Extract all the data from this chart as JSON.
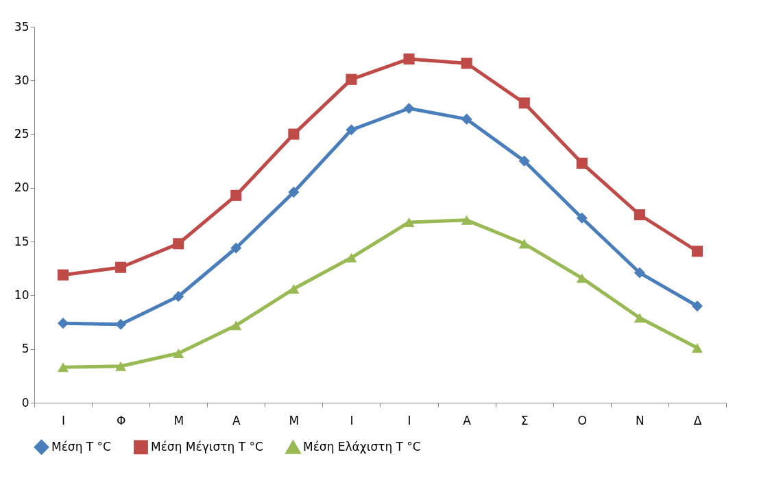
{
  "chart_data": {
    "type": "line",
    "categories": [
      "Ι",
      "Φ",
      "Μ",
      "Α",
      "Μ",
      "Ι",
      "Ι",
      "Α",
      "Σ",
      "Ο",
      "Ν",
      "Δ"
    ],
    "series": [
      {
        "name": "Μέση T °C",
        "color": "#4a7ebb",
        "marker": "diamond",
        "values": [
          7.4,
          7.3,
          9.9,
          14.4,
          19.6,
          25.4,
          27.4,
          26.4,
          22.5,
          17.2,
          12.1,
          9.0
        ]
      },
      {
        "name": "Μέση Μέγιστη T °C",
        "color": "#be4b48",
        "marker": "square",
        "values": [
          11.9,
          12.6,
          14.8,
          19.3,
          25.0,
          30.1,
          32.0,
          31.6,
          27.9,
          22.3,
          17.5,
          14.1
        ]
      },
      {
        "name": "Μέση Ελάχιστη T °C",
        "color": "#98b954",
        "marker": "triangle",
        "values": [
          3.3,
          3.4,
          4.6,
          7.2,
          10.6,
          13.5,
          16.8,
          17.0,
          14.8,
          11.6,
          7.9,
          5.1
        ]
      }
    ],
    "ylim": [
      0,
      35
    ],
    "yticks": [
      0,
      5,
      10,
      15,
      20,
      25,
      30,
      35
    ],
    "grid": false,
    "legend": "bottom",
    "line_style": "solid"
  }
}
